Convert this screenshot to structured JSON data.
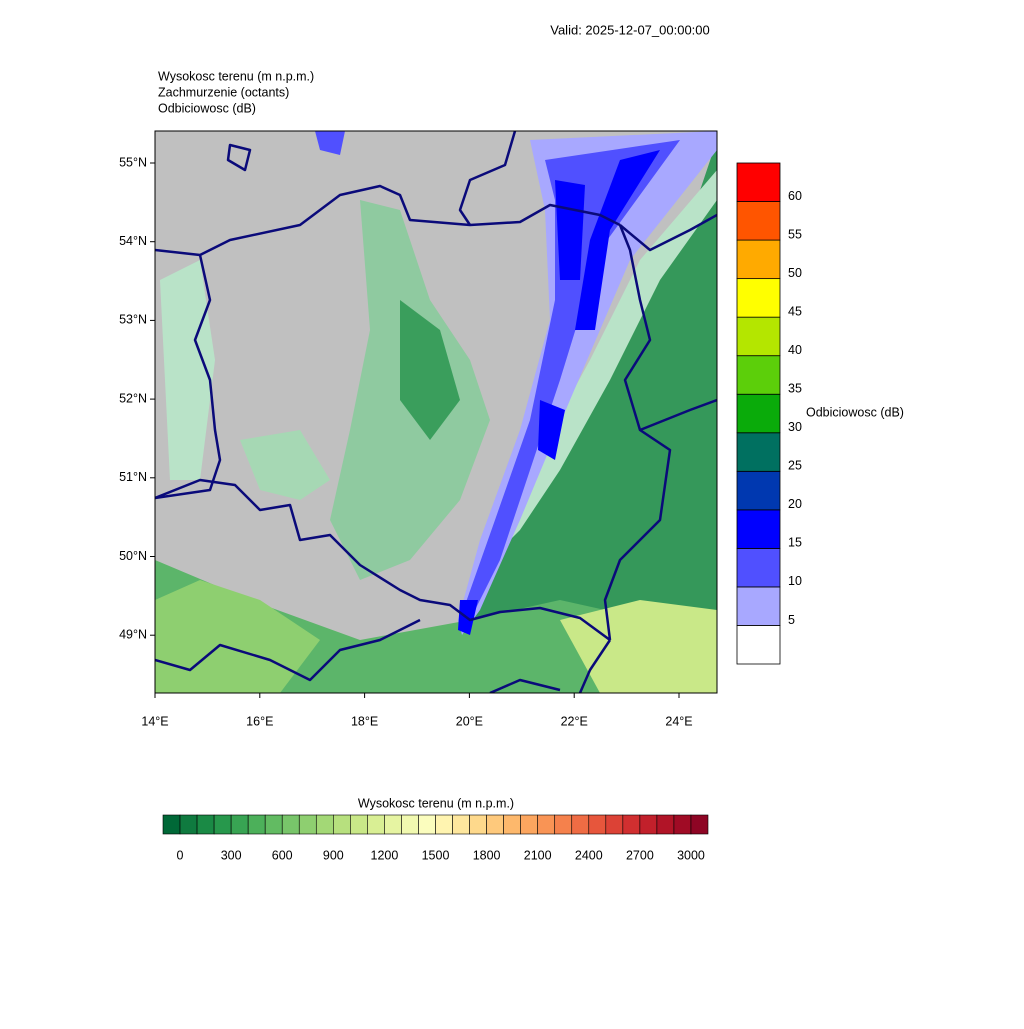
{
  "valid": "Valid: 2025-12-07_00:00:00",
  "header": [
    "Wysokosc terenu   (m n.p.m.)",
    "Zachmurzenie   (octants)",
    "Odbiciowosc   (dB)"
  ],
  "map": {
    "lat_ticks": [
      "55°N",
      "54°N",
      "53°N",
      "52°N",
      "51°N",
      "50°N",
      "49°N"
    ],
    "lon_ticks": [
      "14°E",
      "16°E",
      "18°E",
      "20°E",
      "22°E",
      "24°E"
    ]
  },
  "reflectivity_bar": {
    "title": "Odbiciowosc  (dB)",
    "labels": [
      "5",
      "10",
      "15",
      "20",
      "25",
      "30",
      "35",
      "40",
      "45",
      "50",
      "55",
      "60"
    ],
    "colors": [
      "#ffffff",
      "#a8a8ff",
      "#5050ff",
      "#0000ff",
      "#0038b0",
      "#007060",
      "#0aab0a",
      "#5ccf0a",
      "#b4e600",
      "#ffff00",
      "#ffaa00",
      "#ff5500",
      "#ff0000"
    ]
  },
  "terrain_bar": {
    "title": "Wysokosc terenu  (m n.p.m.)",
    "labels": [
      "0",
      "300",
      "600",
      "900",
      "1200",
      "1500",
      "1800",
      "2100",
      "2400",
      "2700",
      "3000"
    ],
    "colors": [
      "#006837",
      "#0f7a3f",
      "#1a8a45",
      "#27984c",
      "#38a453",
      "#4cb05a",
      "#62bb62",
      "#78c56a",
      "#8ecf70",
      "#a3d876",
      "#b7e07e",
      "#c9e888",
      "#d9ef94",
      "#e6f4a2",
      "#f1f9b0",
      "#fbfdbe",
      "#fff4b0",
      "#fee79e",
      "#fed98c",
      "#fec97c",
      "#fdb86c",
      "#fca65f",
      "#f99455",
      "#f5814c",
      "#ef6c44",
      "#e7563c",
      "#dc4236",
      "#d12f30",
      "#c2202b",
      "#b11427",
      "#a00b25",
      "#8e0524"
    ]
  }
}
